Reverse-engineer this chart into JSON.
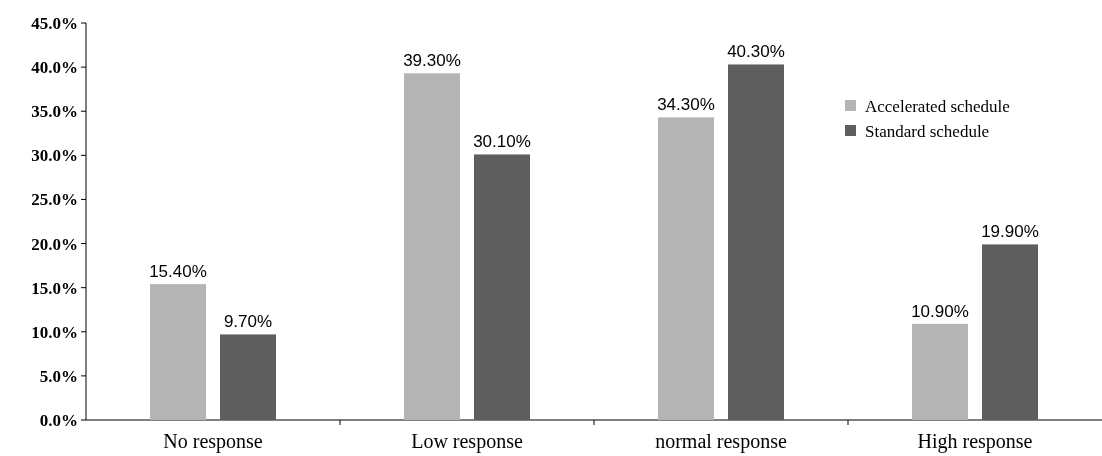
{
  "chart_data": {
    "type": "bar",
    "categories": [
      "No response",
      "Low response",
      "normal response",
      "High response"
    ],
    "series": [
      {
        "name": "Accelerated schedule",
        "color": "#b4b4b4",
        "values": [
          15.4,
          39.3,
          34.3,
          10.9
        ],
        "value_labels": [
          "15.40%",
          "39.30%",
          "34.30%",
          "10.90%"
        ]
      },
      {
        "name": "Standard schedule",
        "color": "#5e5e5e",
        "values": [
          9.7,
          30.1,
          40.3,
          19.9
        ],
        "value_labels": [
          "9.70%",
          "30.10%",
          "40.30%",
          "19.90%"
        ]
      }
    ],
    "ylim": [
      0,
      45
    ],
    "yticks": [
      {
        "value": 0,
        "label": "0.0%"
      },
      {
        "value": 5,
        "label": "5.0%"
      },
      {
        "value": 10,
        "label": "10.0%"
      },
      {
        "value": 15,
        "label": "15.0%"
      },
      {
        "value": 20,
        "label": "20.0%"
      },
      {
        "value": 25,
        "label": "25.0%"
      },
      {
        "value": 30,
        "label": "30.0%"
      },
      {
        "value": 35,
        "label": "35.0%"
      },
      {
        "value": 40,
        "label": "40.0%"
      },
      {
        "value": 45,
        "label": "45.0%"
      }
    ],
    "grid": false,
    "legend": "top right"
  }
}
